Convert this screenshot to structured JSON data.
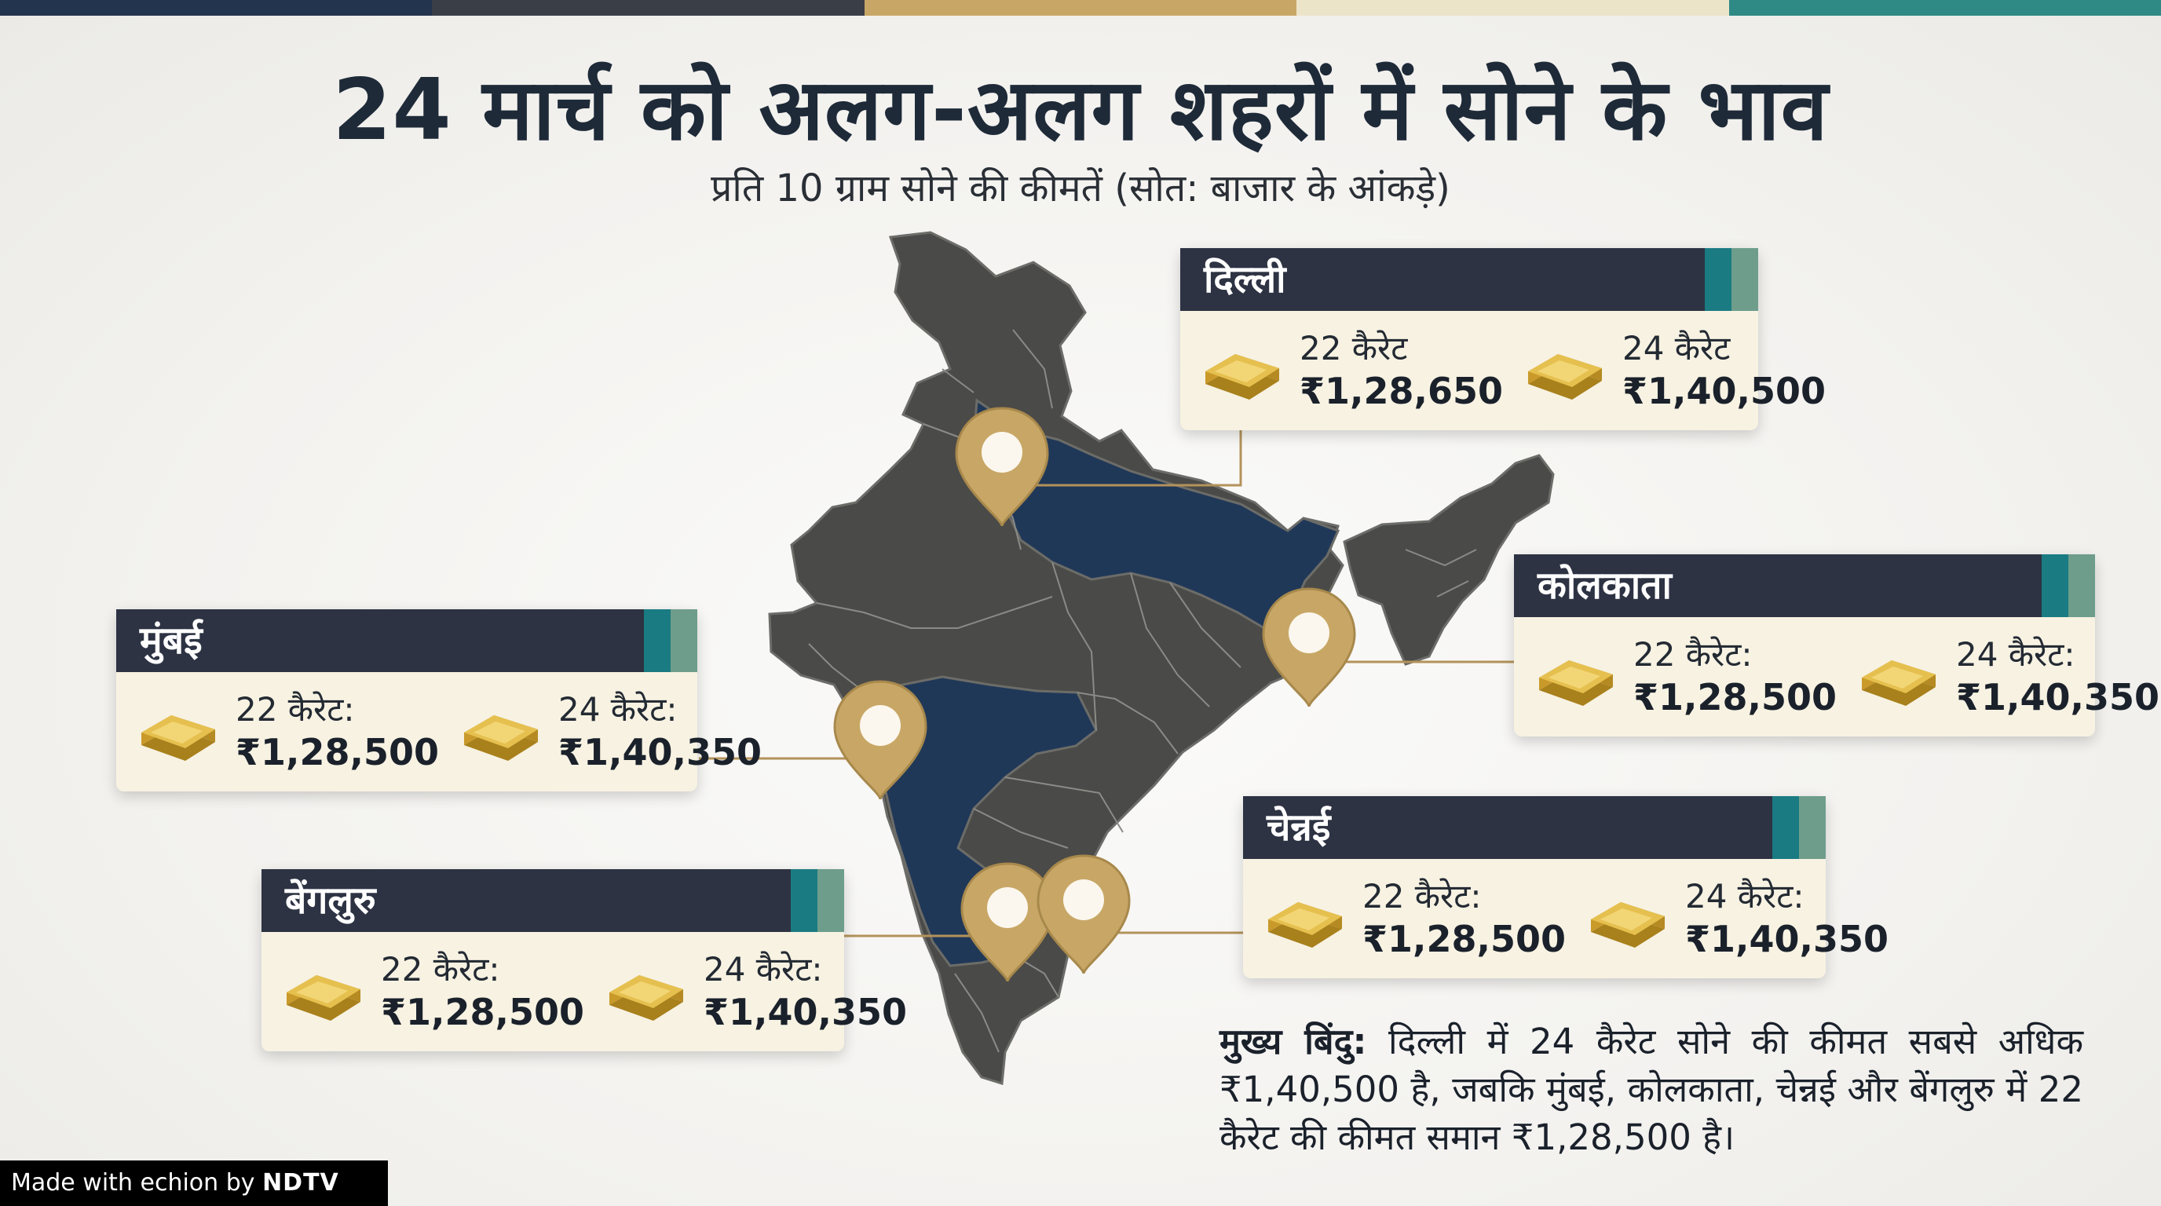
{
  "colors": {
    "topbar": [
      "#23344e",
      "#3a3f47",
      "#c8a766",
      "#ece4c9",
      "#2f8a86"
    ],
    "map_dark": "#4a4a48",
    "map_blue": "#203858",
    "gold": "#c8a766",
    "card_bg": "#f7f2e2",
    "card_header": "#2d3343"
  },
  "title": "24 मार्च को अलग-अलग शहरों में सोने के भाव",
  "subtitle": "प्रति 10 ग्राम सोने की कीमतें (सोत: बाजार के आंकड़े)",
  "cities": {
    "delhi": {
      "name": "दिल्ली",
      "k22_label": "22 कैरेट",
      "k22_price": "₹1,28,650",
      "k24_label": "24 कैरेट",
      "k24_price": "₹1,40,500"
    },
    "kolkata": {
      "name": "कोलकाता",
      "k22_label": "22 कैरेट:",
      "k22_price": "₹1,28,500",
      "k24_label": "24 कैरेट:",
      "k24_price": "₹1,40,350"
    },
    "mumbai": {
      "name": "मुंबई",
      "k22_label": "22 कैरेट:",
      "k22_price": "₹1,28,500",
      "k24_label": "24 कैरेट:",
      "k24_price": "₹1,40,350"
    },
    "chennai": {
      "name": "चेन्नई",
      "k22_label": "22 कैरेट:",
      "k22_price": "₹1,28,500",
      "k24_label": "24 कैरेट:",
      "k24_price": "₹1,40,350"
    },
    "bengaluru": {
      "name": "बेंगलुरु",
      "k22_label": "22 कैरेट:",
      "k22_price": "₹1,28,500",
      "k24_label": "24 कैरेट:",
      "k24_price": "₹1,40,350"
    }
  },
  "key_point": {
    "label": "मुख्य बिंदु:",
    "text": "दिल्ली में 24 कैरेट सोने की कीमत सबसे अधिक ₹1,40,500 है, जबकि मुंबई, कोलकाता, चेन्नई और बेंगलुरु में 22 कैरेट की कीमत समान ₹1,28,500 है।"
  },
  "footer": {
    "made_with": "Made with",
    "brand": "echion",
    "by": "by",
    "logo": "NDTV"
  },
  "icons": [
    "india-map",
    "location-pin-icon",
    "gold-bar-icon"
  ]
}
